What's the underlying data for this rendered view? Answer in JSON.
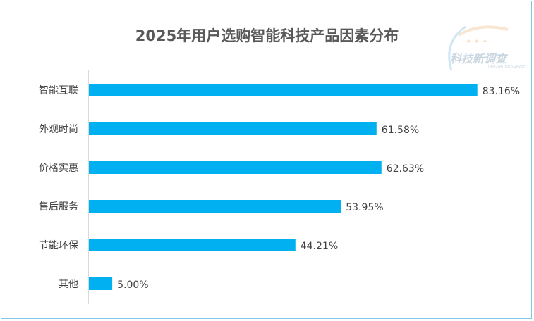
{
  "chart_data": {
    "type": "bar",
    "orientation": "horizontal",
    "title": "2025年用户选购智能科技产品因素分布",
    "categories": [
      "智能互联",
      "外观时尚",
      "价格实惠",
      "售后服务",
      "节能环保",
      "其他"
    ],
    "values": [
      83.16,
      61.58,
      62.63,
      53.95,
      44.21,
      5.0
    ],
    "data_labels": [
      "83.16%",
      "61.58%",
      "62.63%",
      "53.95%",
      "44.21%",
      "5.00%"
    ],
    "xlim": [
      0,
      90
    ],
    "grid": false,
    "bar_color": "#00b0f0"
  },
  "watermark": {
    "text": "科技新调查",
    "subtext": "INNOVATION SURVEY"
  }
}
